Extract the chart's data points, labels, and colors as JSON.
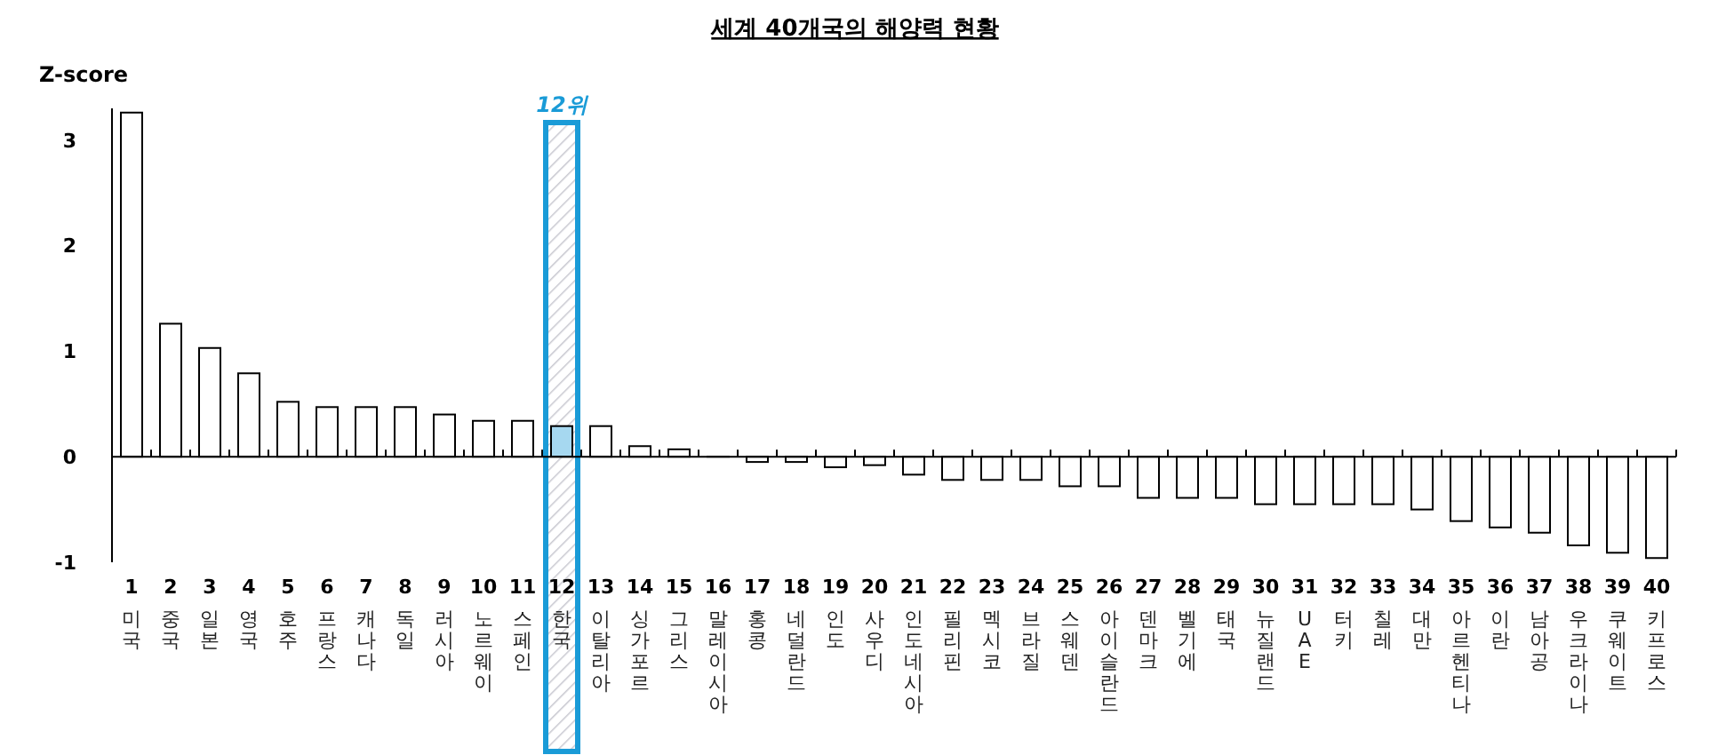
{
  "chart_data": {
    "type": "bar",
    "title": "세계 40개국의 해양력 현황",
    "ylabel": "Z-score",
    "categories": [
      "1 미국",
      "2 중국",
      "3 일본",
      "4 영국",
      "5 호주",
      "6 프랑스",
      "7 캐나다",
      "8 독일",
      "9 러시아",
      "10 노르웨이",
      "11 스페인",
      "12 한국",
      "13 이탈리아",
      "14 싱가포르",
      "15 그리스",
      "16 말레이시아",
      "17 홍콩",
      "18 네덜란드",
      "19 인도",
      "20 사우디",
      "21 인도네시아",
      "22 필리핀",
      "23 멕시코",
      "24 브라질",
      "25 스웨덴",
      "26 아이슬란드",
      "27 덴마크",
      "28 벨기에",
      "29 태국",
      "30 뉴질랜드",
      "31 UAE",
      "32 터키",
      "33 칠레",
      "34 대만",
      "35 아르헨티나",
      "36 이란",
      "37 남아공",
      "38 우크라이나",
      "39 쿠웨이트",
      "40 키프로스"
    ],
    "values": [
      3.26,
      1.26,
      1.03,
      0.79,
      0.52,
      0.47,
      0.47,
      0.47,
      0.4,
      0.34,
      0.34,
      0.29,
      0.29,
      0.1,
      0.07,
      0,
      -0.05,
      -0.05,
      -0.1,
      -0.08,
      -0.17,
      -0.22,
      -0.22,
      -0.22,
      -0.28,
      -0.28,
      -0.39,
      -0.39,
      -0.39,
      -0.45,
      -0.45,
      -0.45,
      -0.45,
      -0.5,
      -0.61,
      -0.67,
      -0.72,
      -0.84,
      -0.91,
      -0.96
    ],
    "colors": [
      "#ffffff",
      "#ffffff",
      "#ffffff",
      "#ffffff",
      "#ffffff",
      "#ffffff",
      "#ffffff",
      "#ffffff",
      "#ffffff",
      "#ffffff",
      "#ffffff",
      "#a6d8f0",
      "#ffffff",
      "#ffffff",
      "#ffffff",
      "#ffffff",
      "#ffffff",
      "#ffffff",
      "#ffffff",
      "#ffffff",
      "#ffffff",
      "#ffffff",
      "#ffffff",
      "#ffffff",
      "#ffffff",
      "#ffffff",
      "#ffffff",
      "#ffffff",
      "#ffffff",
      "#ffffff",
      "#ffffff",
      "#ffffff",
      "#ffffff",
      "#ffffff",
      "#ffffff",
      "#ffffff",
      "#ffffff",
      "#ffffff",
      "#ffffff",
      "#ffffff"
    ],
    "ylim": [
      -1,
      3.3
    ],
    "yticks": [
      -1,
      0,
      1,
      2,
      3
    ],
    "bands": [
      {
        "axis": "x",
        "from": "12 한국",
        "to": "12 한국",
        "label": "12위",
        "color": "#1a9bd7"
      }
    ]
  }
}
